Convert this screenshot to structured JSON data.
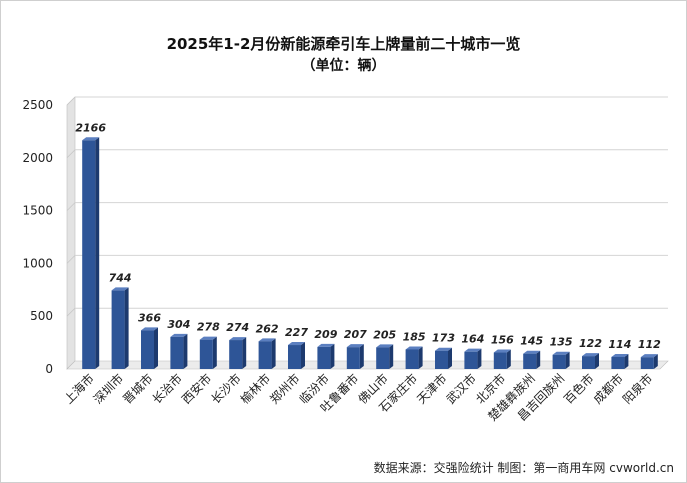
{
  "chart_data": {
    "type": "bar",
    "title": "2025年1-2月份新能源牵引车上牌量前二十城市一览",
    "subtitle": "（单位：辆）",
    "categories": [
      "上海市",
      "深圳市",
      "晋城市",
      "长治市",
      "西安市",
      "长沙市",
      "榆林市",
      "郑州市",
      "临汾市",
      "吐鲁番市",
      "佛山市",
      "石家庄市",
      "天津市",
      "武汉市",
      "北京市",
      "楚雄彝族州",
      "昌吉回族州",
      "百色市",
      "成都市",
      "阳泉市"
    ],
    "values": [
      2166,
      744,
      366,
      304,
      278,
      274,
      262,
      227,
      209,
      207,
      205,
      185,
      173,
      164,
      156,
      145,
      135,
      122,
      114,
      112
    ],
    "data_labels": [
      "2166",
      "744",
      "366",
      "304",
      "278",
      "274",
      "262",
      "227",
      "209",
      "207",
      "205",
      "185",
      "173",
      "164",
      "156",
      "145",
      "135",
      "122",
      "114",
      "112"
    ],
    "ylim": [
      0,
      2500
    ],
    "yticks": [
      "0",
      "500",
      "1000",
      "1500",
      "2000",
      "2500"
    ],
    "grid": true,
    "bar_color": "#2e5597",
    "source_note": "数据来源：交强险统计 制图：第一商用车网 cvworld.cn"
  }
}
